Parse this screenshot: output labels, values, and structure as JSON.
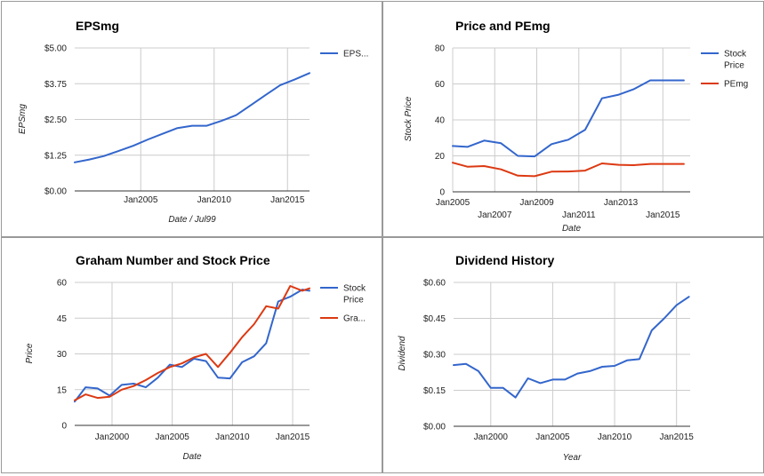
{
  "chart_data": [
    {
      "type": "line",
      "title": "EPSmg",
      "xlabel": "Date / Jul99",
      "ylabel": "EPSmg",
      "xlim": [
        2000.5,
        2016.5
      ],
      "ylim": [
        0,
        5
      ],
      "yticks": [
        {
          "v": 0,
          "label": "$0.00"
        },
        {
          "v": 1.25,
          "label": "$1.25"
        },
        {
          "v": 2.5,
          "label": "$2.50"
        },
        {
          "v": 3.75,
          "label": "$3.75"
        },
        {
          "v": 5,
          "label": "$5.00"
        }
      ],
      "xticks": [
        {
          "v": 2005,
          "label": "Jan2005"
        },
        {
          "v": 2010,
          "label": "Jan2010"
        },
        {
          "v": 2015,
          "label": "Jan2015"
        }
      ],
      "xgrid": [
        2005,
        2010,
        2015
      ],
      "grid": true,
      "legend": "right",
      "series": [
        {
          "name": "EPS...",
          "color": "#3366cc",
          "x": [
            2000.5,
            2001.5,
            2002.5,
            2003.5,
            2004.5,
            2005.5,
            2006.5,
            2007.5,
            2008.5,
            2009.5,
            2010.5,
            2011.5,
            2012.5,
            2013.5,
            2014.5,
            2015.5,
            2016.5
          ],
          "y": [
            1.0,
            1.1,
            1.22,
            1.4,
            1.58,
            1.8,
            2.0,
            2.2,
            2.28,
            2.28,
            2.45,
            2.65,
            3.0,
            3.35,
            3.7,
            3.9,
            4.12
          ]
        }
      ]
    },
    {
      "type": "line",
      "title": "Price and PEmg",
      "xlabel": "Date",
      "ylabel": "Stock Price",
      "xlim": [
        2005,
        2016.3
      ],
      "ylim": [
        0,
        80
      ],
      "yticks": [
        {
          "v": 0,
          "label": "0"
        },
        {
          "v": 20,
          "label": "20"
        },
        {
          "v": 40,
          "label": "40"
        },
        {
          "v": 60,
          "label": "60"
        },
        {
          "v": 80,
          "label": "80"
        }
      ],
      "xticks": [
        {
          "v": 2005,
          "label": "Jan2005",
          "row": 0
        },
        {
          "v": 2007,
          "label": "Jan2007",
          "row": 1
        },
        {
          "v": 2009,
          "label": "Jan2009",
          "row": 0
        },
        {
          "v": 2011,
          "label": "Jan2011",
          "row": 1
        },
        {
          "v": 2013,
          "label": "Jan2013",
          "row": 0
        },
        {
          "v": 2015,
          "label": "Jan2015",
          "row": 1
        }
      ],
      "xgrid": [
        2005,
        2007,
        2009,
        2011,
        2013,
        2015
      ],
      "grid": true,
      "legend": "right",
      "series": [
        {
          "name": "Stock Price",
          "color": "#3366cc",
          "x": [
            2005,
            2005.7,
            2006.5,
            2007.3,
            2008.1,
            2008.9,
            2009.7,
            2010.5,
            2011.3,
            2012.1,
            2012.9,
            2013.6,
            2014.4,
            2015.2,
            2016.0
          ],
          "y": [
            25.5,
            25.0,
            28.5,
            27.0,
            20.0,
            19.7,
            26.5,
            29.0,
            34.5,
            52.0,
            54.0,
            57.0,
            62.0,
            62.0,
            62.0
          ]
        },
        {
          "name": "PEmg",
          "color": "#dc3912",
          "x": [
            2005,
            2005.7,
            2006.5,
            2007.3,
            2008.1,
            2008.9,
            2009.7,
            2010.5,
            2011.3,
            2012.1,
            2012.9,
            2013.6,
            2014.4,
            2015.2,
            2016.0
          ],
          "y": [
            16.2,
            14.0,
            14.3,
            12.5,
            9.0,
            8.7,
            11.2,
            11.3,
            11.8,
            15.8,
            15.0,
            14.8,
            15.5,
            15.5,
            15.5
          ]
        }
      ]
    },
    {
      "type": "line",
      "title": "Graham Number and Stock Price",
      "xlabel": "Date",
      "ylabel": "Price",
      "xlim": [
        1996.9,
        2016.4
      ],
      "ylim": [
        0,
        60
      ],
      "yticks": [
        {
          "v": 0,
          "label": "0"
        },
        {
          "v": 15,
          "label": "15"
        },
        {
          "v": 30,
          "label": "30"
        },
        {
          "v": 45,
          "label": "45"
        },
        {
          "v": 60,
          "label": "60"
        }
      ],
      "xticks": [
        {
          "v": 2000,
          "label": "Jan2000"
        },
        {
          "v": 2005,
          "label": "Jan2005"
        },
        {
          "v": 2010,
          "label": "Jan2010"
        },
        {
          "v": 2015,
          "label": "Jan2015"
        }
      ],
      "xgrid": [
        2000,
        2005,
        2010,
        2015
      ],
      "grid": true,
      "legend": "right",
      "series": [
        {
          "name": "Stock Price",
          "color": "#3366cc",
          "x": [
            1996.9,
            1997.8,
            1998.8,
            1999.8,
            2000.8,
            2001.8,
            2002.8,
            2003.8,
            2004.8,
            2005.8,
            2006.8,
            2007.8,
            2008.8,
            2009.8,
            2010.8,
            2011.8,
            2012.8,
            2013.8,
            2014.8,
            2015.8,
            2016.4
          ],
          "y": [
            10.0,
            16.0,
            15.5,
            12.5,
            17.0,
            17.5,
            16.0,
            20.0,
            25.5,
            24.5,
            28.0,
            27.0,
            20.0,
            19.7,
            26.5,
            29.0,
            34.5,
            52.0,
            54.0,
            57.0,
            56.5
          ]
        },
        {
          "name": "Gra...",
          "color": "#dc3912",
          "x": [
            1996.9,
            1997.8,
            1998.8,
            1999.8,
            2000.8,
            2001.8,
            2002.8,
            2003.8,
            2004.8,
            2005.8,
            2006.8,
            2007.8,
            2008.8,
            2009.8,
            2010.8,
            2011.8,
            2012.8,
            2013.8,
            2014.8,
            2015.8,
            2016.4
          ],
          "y": [
            10.5,
            13.0,
            11.5,
            12.0,
            15.0,
            16.5,
            19.0,
            22.0,
            24.5,
            26.0,
            28.5,
            30.0,
            24.5,
            30.5,
            37.0,
            42.5,
            50.0,
            49.0,
            58.5,
            56.5,
            57.5
          ]
        }
      ]
    },
    {
      "type": "line",
      "title": "Dividend History",
      "xlabel": "Year",
      "ylabel": "Dividend",
      "xlim": [
        1997,
        2016.1
      ],
      "ylim": [
        0,
        0.6
      ],
      "yticks": [
        {
          "v": 0,
          "label": "$0.00"
        },
        {
          "v": 0.15,
          "label": "$0.15"
        },
        {
          "v": 0.3,
          "label": "$0.30"
        },
        {
          "v": 0.45,
          "label": "$0.45"
        },
        {
          "v": 0.6,
          "label": "$0.60"
        }
      ],
      "xticks": [
        {
          "v": 2000,
          "label": "Jan2000"
        },
        {
          "v": 2005,
          "label": "Jan2005"
        },
        {
          "v": 2010,
          "label": "Jan2010"
        },
        {
          "v": 2015,
          "label": "Jan2015"
        }
      ],
      "xgrid": [
        2000,
        2005,
        2010,
        2015
      ],
      "grid": true,
      "legend": "none",
      "series": [
        {
          "name": "",
          "color": "#3366cc",
          "x": [
            1997,
            1998,
            1999,
            2000,
            2001,
            2002,
            2003,
            2004,
            2005,
            2006,
            2007,
            2008,
            2009,
            2010,
            2011,
            2012,
            2013,
            2014,
            2015,
            2016
          ],
          "y": [
            0.255,
            0.26,
            0.23,
            0.16,
            0.16,
            0.12,
            0.2,
            0.18,
            0.195,
            0.195,
            0.22,
            0.23,
            0.248,
            0.252,
            0.275,
            0.28,
            0.4,
            0.45,
            0.505,
            0.54
          ]
        }
      ]
    }
  ]
}
